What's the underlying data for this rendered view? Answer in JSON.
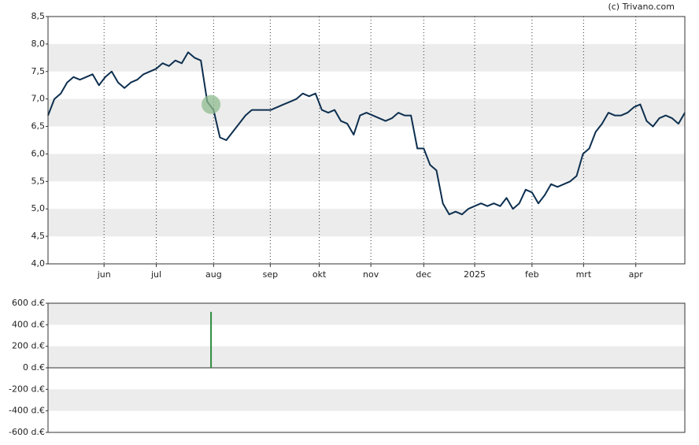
{
  "source": "(c) Trivano.com",
  "chart_data": [
    {
      "type": "line",
      "color": "#0d2f4f",
      "x": [
        0,
        1,
        2,
        3,
        4,
        5,
        6,
        7,
        8,
        9,
        10,
        11,
        12,
        13,
        14,
        15,
        16,
        17,
        18,
        19,
        20,
        21,
        22,
        23,
        24,
        25,
        26,
        27,
        28,
        29,
        30,
        31,
        32,
        33,
        34,
        35,
        36,
        37,
        38,
        39,
        40,
        41,
        42,
        43,
        44,
        45,
        46,
        47,
        48,
        49,
        50,
        51,
        52,
        53,
        54,
        55,
        56,
        57,
        58,
        59,
        60,
        61,
        62,
        63,
        64,
        65,
        66,
        67,
        68,
        69,
        70,
        71,
        72,
        73,
        74,
        75,
        76,
        77,
        78,
        79,
        80,
        81,
        82,
        83,
        84,
        85,
        86,
        87,
        88,
        89,
        90,
        91,
        92,
        93,
        94,
        95,
        96,
        97,
        98,
        99,
        100
      ],
      "values": [
        6.7,
        7.0,
        7.1,
        7.3,
        7.4,
        7.35,
        7.4,
        7.45,
        7.25,
        7.4,
        7.5,
        7.3,
        7.2,
        7.3,
        7.35,
        7.45,
        7.5,
        7.55,
        7.65,
        7.6,
        7.7,
        7.65,
        7.85,
        7.75,
        7.7,
        6.95,
        6.8,
        6.3,
        6.25,
        6.4,
        6.55,
        6.7,
        6.8,
        6.8,
        6.8,
        6.8,
        6.85,
        6.9,
        6.95,
        7.0,
        7.1,
        7.05,
        7.1,
        6.8,
        6.75,
        6.8,
        6.6,
        6.55,
        6.35,
        6.7,
        6.75,
        6.7,
        6.65,
        6.6,
        6.65,
        6.75,
        6.7,
        6.7,
        6.1,
        6.1,
        5.8,
        5.7,
        5.1,
        4.9,
        4.95,
        4.9,
        5.0,
        5.05,
        5.1,
        5.05,
        5.1,
        5.05,
        5.2,
        5.0,
        5.1,
        5.35,
        5.3,
        5.1,
        5.25,
        5.45,
        5.4,
        5.45,
        5.5,
        5.6,
        6.0,
        6.1,
        6.4,
        6.55,
        6.75,
        6.7,
        6.7,
        6.75,
        6.85,
        6.9,
        6.6,
        6.5,
        6.65,
        6.7,
        6.65,
        6.55,
        6.75
      ],
      "marker": {
        "x": 25.6,
        "value": 6.9,
        "color": "#8fbc8f"
      },
      "xlim": [
        0,
        100
      ],
      "xticks": [
        {
          "value": 8.8,
          "label": "jun"
        },
        {
          "value": 17.0,
          "label": "jul"
        },
        {
          "value": 26.0,
          "label": "aug"
        },
        {
          "value": 34.9,
          "label": "sep"
        },
        {
          "value": 42.6,
          "label": "okt"
        },
        {
          "value": 50.7,
          "label": "nov"
        },
        {
          "value": 59.0,
          "label": "dec"
        },
        {
          "value": 67.0,
          "label": "2025"
        },
        {
          "value": 76.0,
          "label": "feb"
        },
        {
          "value": 84.1,
          "label": "mrt"
        },
        {
          "value": 92.3,
          "label": "apr"
        }
      ],
      "ylim": [
        4.0,
        8.5
      ],
      "yticks": [
        {
          "value": 4.0,
          "label": "4,0"
        },
        {
          "value": 4.5,
          "label": "4,5"
        },
        {
          "value": 5.0,
          "label": "5,0"
        },
        {
          "value": 5.5,
          "label": "5,5"
        },
        {
          "value": 6.0,
          "label": "6,0"
        },
        {
          "value": 6.5,
          "label": "6,5"
        },
        {
          "value": 7.0,
          "label": "7,0"
        },
        {
          "value": 7.5,
          "label": "7,5"
        },
        {
          "value": 8.0,
          "label": "8,0"
        },
        {
          "value": 8.5,
          "label": "8,5"
        }
      ],
      "grid": true
    },
    {
      "type": "bar",
      "color": "#2e8b3e",
      "x": [
        25.6
      ],
      "values": [
        520
      ],
      "xlim": [
        0,
        100
      ],
      "ylim": [
        -600,
        600
      ],
      "yticks": [
        {
          "value": -600,
          "label": "-600 d.€"
        },
        {
          "value": -400,
          "label": "-400 d.€"
        },
        {
          "value": -200,
          "label": "-200 d.€"
        },
        {
          "value": 0,
          "label": "0 d.€"
        },
        {
          "value": 200,
          "label": "200 d.€"
        },
        {
          "value": 400,
          "label": "400 d.€"
        },
        {
          "value": 600,
          "label": "600 d.€"
        }
      ],
      "grid": false
    }
  ]
}
